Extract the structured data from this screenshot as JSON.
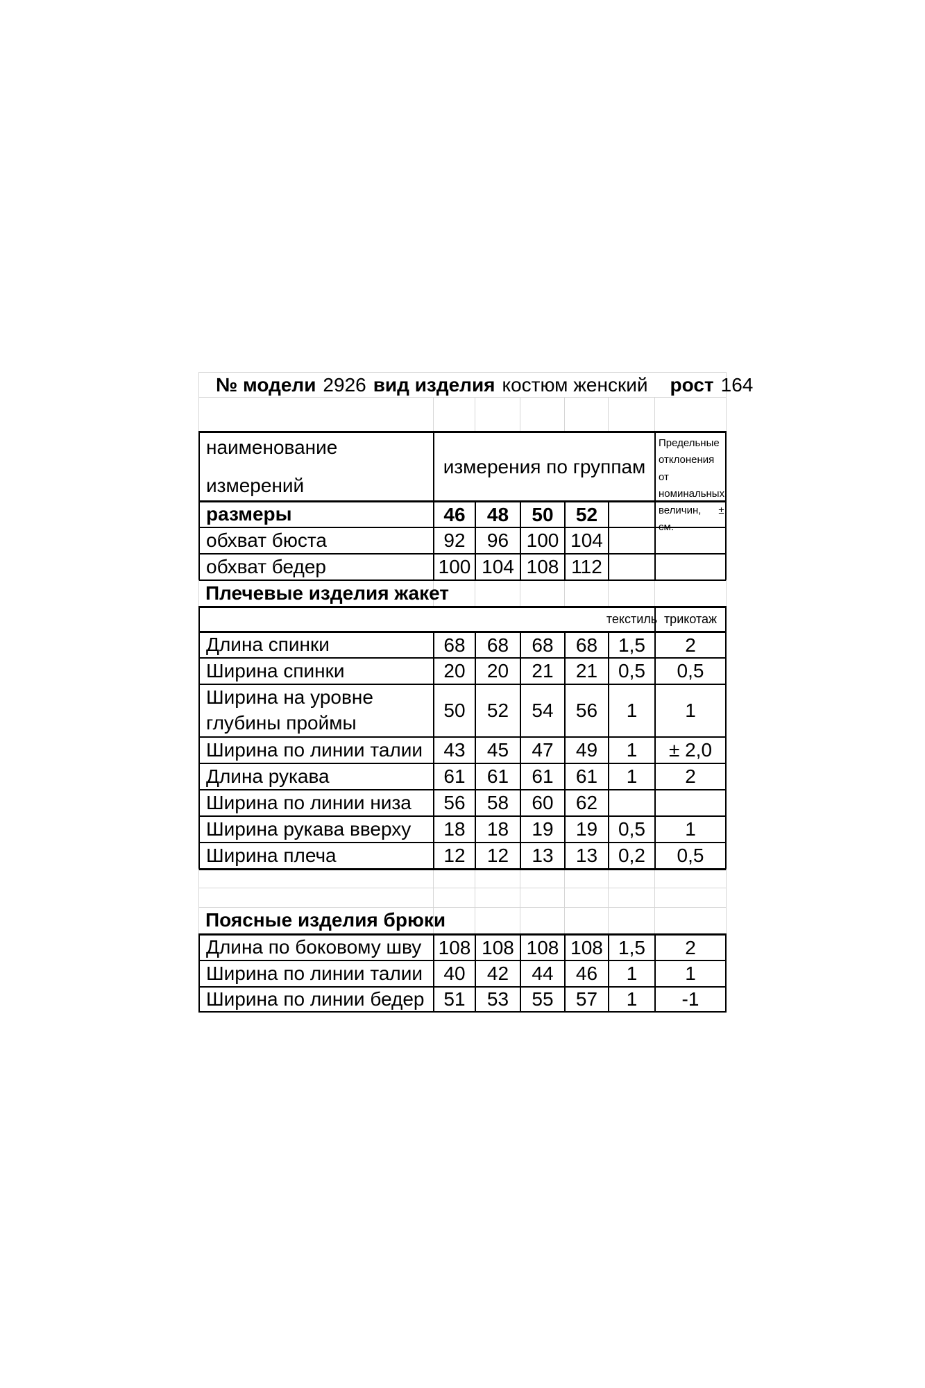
{
  "colors": {
    "background": "#ffffff",
    "text": "#000000",
    "border_black": "#000000",
    "border_light": "#d6d6d6"
  },
  "title_bar": {
    "model_label": "№ модели",
    "model_value": "2926",
    "type_label": "вид изделия",
    "type_value": "костюм женский",
    "height_label": "рост",
    "height_value": "164"
  },
  "table": {
    "header": {
      "name_col": "наименование\nизмерений",
      "groups_col": "измерения по группам",
      "deviation_col": "Предельные\nотклонения\nот\nноминальных\nвеличин,      ±\nсм."
    },
    "sizes_row": {
      "label": "размеры",
      "values": [
        "46",
        "48",
        "50",
        "52"
      ]
    },
    "base_rows": [
      {
        "label": "обхват бюста",
        "values": [
          "92",
          "96",
          "100",
          "104"
        ]
      },
      {
        "label": "обхват бедер",
        "values": [
          "100",
          "104",
          "108",
          "112"
        ]
      }
    ],
    "fabric_labels": {
      "textile": "текстиль",
      "knit": "трикотаж"
    },
    "sections": [
      {
        "title": "Плечевые изделия жакет",
        "rows": [
          {
            "label": "Длина спинки",
            "values": [
              "68",
              "68",
              "68",
              "68"
            ],
            "dev_textile": "1,5",
            "dev_knit": "2"
          },
          {
            "label": "Ширина спинки",
            "values": [
              "20",
              "20",
              "21",
              "21"
            ],
            "dev_textile": "0,5",
            "dev_knit": "0,5"
          },
          {
            "label": "Ширина на уровне\nглубины проймы",
            "values": [
              "50",
              "52",
              "54",
              "56"
            ],
            "dev_textile": "1",
            "dev_knit": "1"
          },
          {
            "label": "Ширина по линии талии",
            "values": [
              "43",
              "45",
              "47",
              "49"
            ],
            "dev_textile": "1",
            "dev_knit": "± 2,0"
          },
          {
            "label": "Длина рукава",
            "values": [
              "61",
              "61",
              "61",
              "61"
            ],
            "dev_textile": "1",
            "dev_knit": "2"
          },
          {
            "label": "Ширина по линии низа",
            "values": [
              "56",
              "58",
              "60",
              "62"
            ],
            "dev_textile": "",
            "dev_knit": ""
          },
          {
            "label": "Ширина рукава вверху",
            "values": [
              "18",
              "18",
              "19",
              "19"
            ],
            "dev_textile": "0,5",
            "dev_knit": "1"
          },
          {
            "label": "Ширина плеча",
            "values": [
              "12",
              "12",
              "13",
              "13"
            ],
            "dev_textile": "0,2",
            "dev_knit": "0,5"
          }
        ]
      },
      {
        "title": "Поясные изделия брюки",
        "rows": [
          {
            "label": "Длина по боковому шву",
            "values": [
              "108",
              "108",
              "108",
              "108"
            ],
            "dev_textile": "1,5",
            "dev_knit": "2"
          },
          {
            "label": "Ширина по линии талии",
            "values": [
              "40",
              "42",
              "44",
              "46"
            ],
            "dev_textile": "1",
            "dev_knit": "1"
          },
          {
            "label": "Ширина по линии бедер",
            "values": [
              "51",
              "53",
              "55",
              "57"
            ],
            "dev_textile": "1",
            "dev_knit": "-1"
          }
        ]
      }
    ]
  }
}
